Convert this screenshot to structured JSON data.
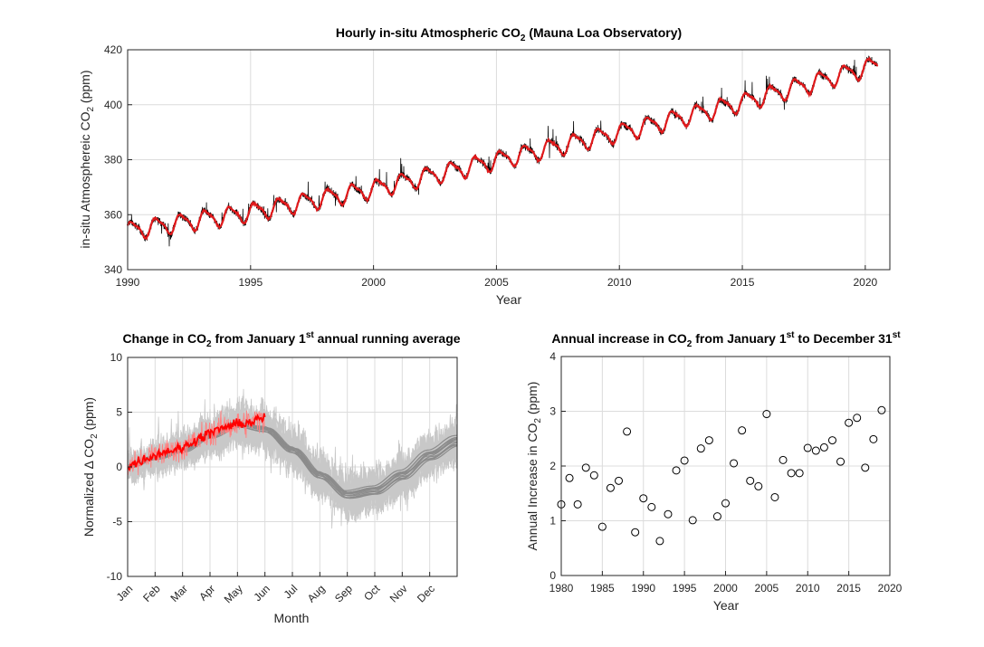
{
  "chart_data": [
    {
      "type": "line",
      "title": {
        "prefix": "Hourly in-situ Atmospheric CO",
        "sub": "2",
        "suffix": " (Mauna Loa Observatory)"
      },
      "xlabel": "Year",
      "ylabel": {
        "prefix": "in-situ Atmosphereic CO",
        "sub": "2",
        "suffix": " (ppm)"
      },
      "xlim": [
        1990,
        2021
      ],
      "ylim": [
        340,
        420
      ],
      "xticks": [
        1990,
        1995,
        2000,
        2005,
        2010,
        2015,
        2020
      ],
      "yticks": [
        340,
        360,
        380,
        400,
        420
      ],
      "grid": true,
      "series": [
        {
          "color": "#000000",
          "values": "hourly observations (noisy)"
        },
        {
          "color": "#e0191b",
          "trend_points": [
            [
              1990,
              354.2
            ],
            [
              1995,
              360.9
            ],
            [
              2000,
              369.4
            ],
            [
              2005,
              379.8
            ],
            [
              2010,
              389.9
            ],
            [
              2015,
              400.9
            ],
            [
              2020.5,
              414.5
            ]
          ]
        }
      ]
    },
    {
      "type": "line",
      "title": {
        "prefix": "Change in CO",
        "sub": "2",
        "mid": " from January 1",
        "sup": "st",
        "suffix": " annual running average"
      },
      "xlabel": "Month",
      "ylabel": {
        "prefix": "Normalized Δ CO",
        "sub": "2",
        "suffix": " (ppm)"
      },
      "categories": [
        "Jan",
        "Feb",
        "Mar",
        "Apr",
        "May",
        "Jun",
        "Jul",
        "Aug",
        "Sep",
        "Oct",
        "Nov",
        "Dec"
      ],
      "ylim": [
        -10,
        10
      ],
      "yticks": [
        -10,
        -5,
        0,
        5,
        10
      ],
      "grid": true,
      "seasonal_curve": [
        [
          0,
          0
        ],
        [
          1,
          0.8
        ],
        [
          2,
          1.5
        ],
        [
          3,
          2.8
        ],
        [
          4,
          3.8
        ],
        [
          5,
          3.4
        ],
        [
          6,
          1.5
        ],
        [
          7,
          -0.8
        ],
        [
          8,
          -2.6
        ],
        [
          9,
          -2.2
        ],
        [
          10,
          -0.8
        ],
        [
          11,
          1.0
        ],
        [
          12,
          2.3
        ]
      ],
      "current_year": [
        [
          0,
          0
        ],
        [
          0.5,
          0.6
        ],
        [
          1,
          1.1
        ],
        [
          1.5,
          1.5
        ],
        [
          2,
          1.7
        ],
        [
          2.5,
          2.5
        ],
        [
          3,
          3.1
        ],
        [
          3.5,
          3.6
        ],
        [
          4,
          3.9
        ],
        [
          4.5,
          4.1
        ],
        [
          5,
          4.5
        ]
      ],
      "colors": {
        "historical_raw": "#c8c8c8",
        "historical_smooth": "#8c8c8c",
        "current_raw": "#ff8080",
        "current_smooth": "#ff0000"
      }
    },
    {
      "type": "scatter",
      "title": {
        "prefix": "Annual increase in CO",
        "sub": "2",
        "mid": " from January 1",
        "sup": "st",
        "mid2": " to December 31",
        "sup2": "st"
      },
      "xlabel": "Year",
      "ylabel": {
        "prefix": "Annual Increase in CO",
        "sub": "2",
        "suffix": " (ppm)"
      },
      "xlim": [
        1980,
        2020
      ],
      "ylim": [
        0,
        4
      ],
      "xticks": [
        1980,
        1985,
        1990,
        1995,
        2000,
        2005,
        2010,
        2015,
        2020
      ],
      "yticks": [
        0,
        1,
        2,
        3,
        4
      ],
      "grid": true,
      "x": [
        1980,
        1981,
        1982,
        1983,
        1984,
        1985,
        1986,
        1987,
        1988,
        1989,
        1990,
        1991,
        1992,
        1993,
        1994,
        1995,
        1996,
        1997,
        1998,
        1999,
        2000,
        2001,
        2002,
        2003,
        2004,
        2005,
        2006,
        2007,
        2008,
        2009,
        2010,
        2011,
        2012,
        2013,
        2014,
        2015,
        2016,
        2017,
        2018,
        2019
      ],
      "y": [
        1.3,
        1.78,
        1.3,
        1.97,
        1.83,
        0.89,
        1.6,
        1.73,
        2.63,
        0.79,
        1.41,
        1.25,
        0.63,
        1.12,
        1.92,
        2.1,
        1.01,
        2.32,
        2.47,
        1.08,
        1.32,
        2.05,
        2.65,
        1.73,
        1.63,
        2.95,
        1.43,
        2.11,
        1.87,
        1.87,
        2.33,
        2.28,
        2.34,
        2.47,
        2.08,
        2.79,
        2.88,
        1.97,
        2.49,
        3.02
      ]
    }
  ]
}
